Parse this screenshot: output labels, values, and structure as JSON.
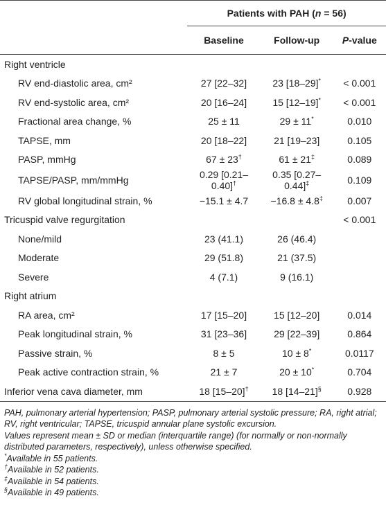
{
  "header": {
    "group": {
      "before": "Patients with PAH (",
      "italic": "n",
      "after": " = 56)"
    },
    "baseline": "Baseline",
    "followup": "Follow-up",
    "pvalue": {
      "italic": "P",
      "after": "-value"
    }
  },
  "body": {
    "sections": [
      {
        "title": "Right ventricle",
        "rows": [
          {
            "label": "RV end-diastolic area, cm²",
            "baseline": "27 [22–32]",
            "followup": "23 [18–29]",
            "followup_mark": "*",
            "p": "< 0.001"
          },
          {
            "label": "RV end-systolic area, cm²",
            "baseline": "20 [16–24]",
            "followup": "15 [12–19]",
            "followup_mark": "*",
            "p": "< 0.001"
          },
          {
            "label": "Fractional area change, %",
            "baseline": "25 ± 11",
            "followup": "29 ± 11",
            "followup_mark": "*",
            "p": "0.010"
          },
          {
            "label": "TAPSE, mm",
            "baseline": "20 [18–22]",
            "followup": "21 [19–23]",
            "p": "0.105"
          },
          {
            "label": "PASP, mmHg",
            "baseline": "67 ± 23",
            "baseline_mark": "†",
            "followup": "61 ± 21",
            "followup_mark": "‡",
            "p": "0.089"
          },
          {
            "label": "TAPSE/PASP, mm/mmHg",
            "baseline": "0.29 [0.21–0.40]",
            "baseline_mark": "†",
            "followup": "0.35 [0.27–0.44]",
            "followup_mark": "‡",
            "p": "0.109"
          },
          {
            "label": "RV global longitudinal strain, %",
            "baseline": "−15.1 ± 4.7",
            "followup": "−16.8 ± 4.8",
            "followup_mark": "‡",
            "p": "0.007"
          }
        ]
      },
      {
        "title": "Tricuspid valve regurgitation",
        "p": "< 0.001",
        "rows": [
          {
            "label": "None/mild",
            "baseline": "23 (41.1)",
            "followup": "26 (46.4)"
          },
          {
            "label": "Moderate",
            "baseline": "29 (51.8)",
            "followup": "21 (37.5)"
          },
          {
            "label": "Severe",
            "baseline": "4 (7.1)",
            "followup": "9 (16.1)"
          }
        ]
      },
      {
        "title": "Right atrium",
        "rows": [
          {
            "label": "RA area, cm²",
            "baseline": "17 [15–20]",
            "followup": "15 [12–20]",
            "p": "0.014"
          },
          {
            "label": "Peak longitudinal strain, %",
            "baseline": "31 [23–36]",
            "followup": "29 [22–39]",
            "p": "0.864"
          },
          {
            "label": "Passive strain, %",
            "baseline": "8 ± 5",
            "followup": "10 ± 8",
            "followup_mark": "*",
            "p": "0.0117"
          },
          {
            "label": "Peak active contraction strain, %",
            "baseline": "21 ± 7",
            "followup": "20 ± 10",
            "followup_mark": "*",
            "p": "0.704"
          }
        ]
      },
      {
        "title": "Inferior vena cava diameter, mm",
        "baseline": "18 [15–20]",
        "baseline_mark": "†",
        "followup": "18 [14–21]",
        "followup_mark": "§",
        "p": "0.928"
      }
    ]
  },
  "footnotes": {
    "abbreviations": "PAH, pulmonary arterial hypertension; PASP, pulmonary arterial systolic pressure; RA, right atrial; RV, right ventricular; TAPSE, tricuspid annular plane systolic excursion.",
    "values": "Values represent mean ± SD or median (interquartile range) (for normally or non-normally distributed parameters, respectively), unless otherwise specified.",
    "marks": [
      {
        "mark": "*",
        "text": "Available in 55 patients."
      },
      {
        "mark": "†",
        "text": "Available in 52 patients."
      },
      {
        "mark": "‡",
        "text": "Available in 54 patients."
      },
      {
        "mark": "§",
        "text": "Available in 49 patients."
      }
    ]
  }
}
